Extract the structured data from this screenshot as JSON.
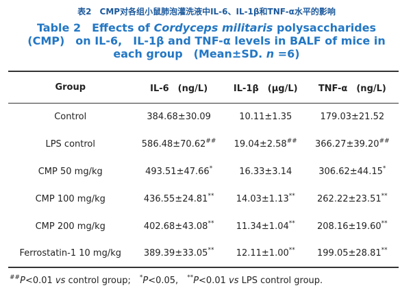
{
  "title_cn": "表2　CMP对各组小鼠肺泡灌洗液中IL-6、IL-1β和TNF-α水平的影响",
  "title_en": [
    "Table 2　Effects of ",
    "Cordyceps militaris",
    " polysaccharides (CMP)　on IL-6,　IL-1β and TNF-α levels in BALF of mice in each group　(Mean±SD. ",
    "n",
    " =6)"
  ],
  "table": {
    "header": [
      "Group",
      "IL-6　(ng/L)",
      "IL-1β　(μg/L)",
      "TNF-α　(ng/L)"
    ],
    "rows": [
      {
        "group": "Control",
        "values": [
          {
            "text": "384.68±30.09"
          },
          {
            "text": "10.11±1.35"
          },
          {
            "text": "179.03±21.52"
          }
        ]
      },
      {
        "group": "LPS control",
        "values": [
          {
            "text": "586.48±70.62",
            "sup": "##"
          },
          {
            "text": "19.04±2.58",
            "sup": "##"
          },
          {
            "text": "366.27±39.20",
            "sup": "##"
          }
        ]
      },
      {
        "group": "CMP 50 mg/kg",
        "values": [
          {
            "text": "493.51±47.66",
            "sup": "*"
          },
          {
            "text": "16.33±3.14"
          },
          {
            "text": "306.62±44.15",
            "sup": "*"
          }
        ]
      },
      {
        "group": "CMP 100 mg/kg",
        "values": [
          {
            "text": "436.55±24.81",
            "sup": "**"
          },
          {
            "text": "14.03±1.13",
            "sup": "**"
          },
          {
            "text": "262.22±23.51",
            "sup": "**"
          }
        ]
      },
      {
        "group": "CMP 200 mg/kg",
        "values": [
          {
            "text": "402.68±43.08",
            "sup": "**"
          },
          {
            "text": "11.34±1.04",
            "sup": "**"
          },
          {
            "text": "208.16±19.60",
            "sup": "**"
          }
        ]
      },
      {
        "group": "Ferrostatin-1 10 mg/kg",
        "values": [
          {
            "text": "389.39±33.05",
            "sup": "**"
          },
          {
            "text": "12.11±1.00",
            "sup": "**"
          },
          {
            "text": "199.05±28.81",
            "sup": "**"
          }
        ]
      }
    ]
  },
  "footnote": [
    "##",
    "P",
    "<0.01 ",
    "vs",
    " control group;　",
    "*",
    "P",
    "<0.05,　",
    "**",
    "P",
    "<0.01 ",
    "vs",
    " LPS control group."
  ]
}
